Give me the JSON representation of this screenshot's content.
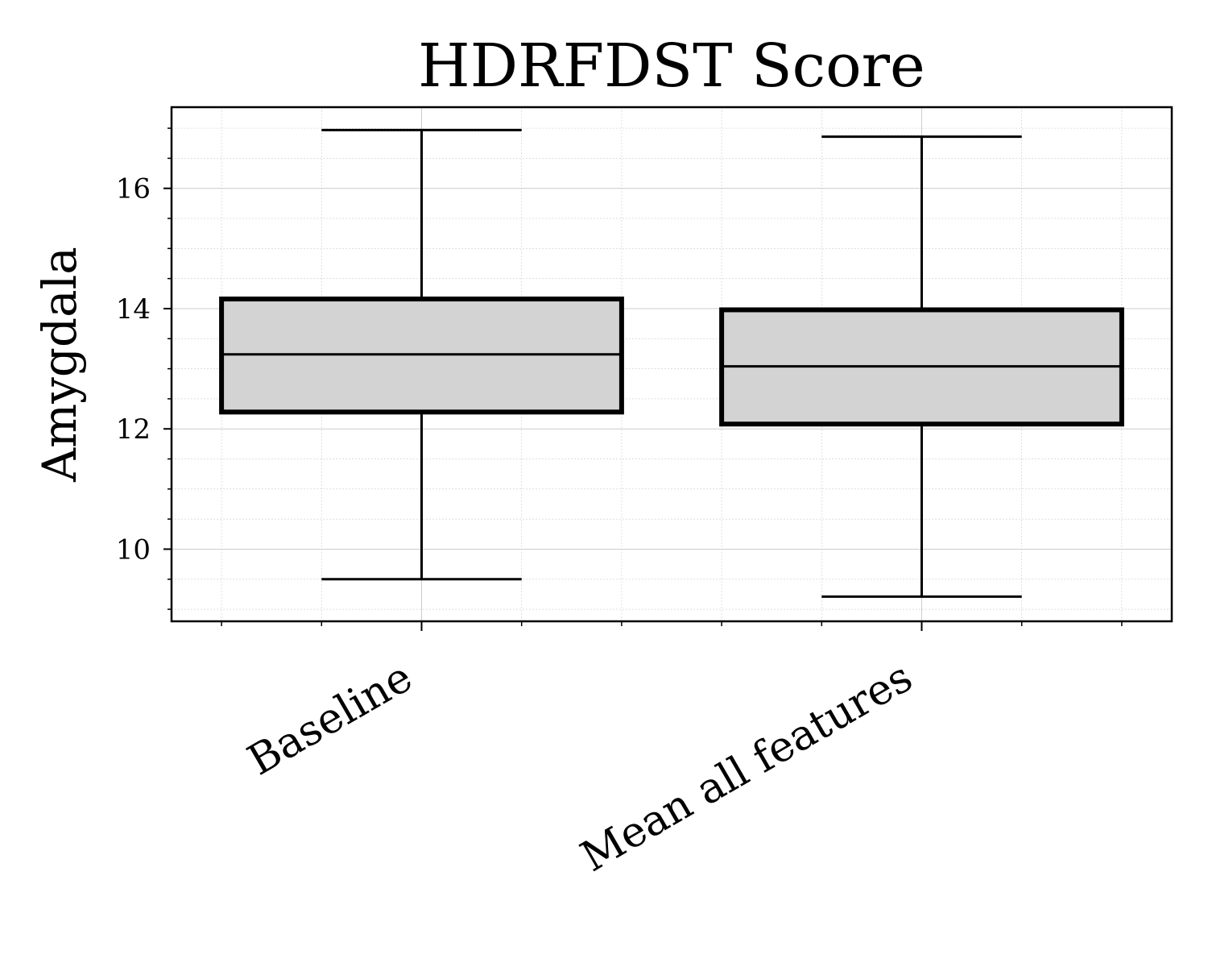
{
  "chart_data": {
    "type": "box",
    "title": "HDRFDST Score",
    "xlabel": "",
    "ylabel": "Amygdala",
    "ylim": [
      8.8,
      17.35
    ],
    "yticks": [
      10,
      12,
      14,
      16
    ],
    "grid": true,
    "categories": [
      "Baseline",
      "Mean all features"
    ],
    "boxes": [
      {
        "whisker_low": 9.5,
        "q1": 12.28,
        "median": 13.24,
        "q3": 14.16,
        "whisker_high": 16.97
      },
      {
        "whisker_low": 9.21,
        "q1": 12.08,
        "median": 13.04,
        "q3": 13.98,
        "whisker_high": 16.86
      }
    ],
    "colors": {
      "box_fill": "#d3d3d3",
      "line": "#000000",
      "grid": "#cccccc"
    }
  }
}
